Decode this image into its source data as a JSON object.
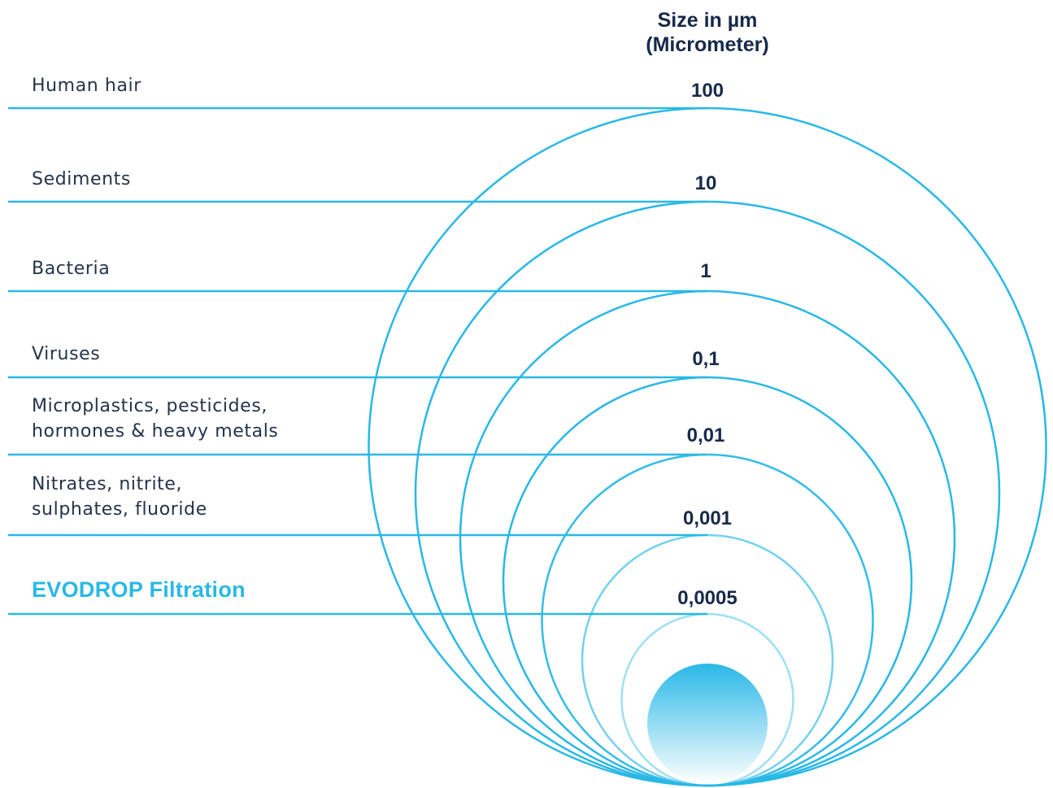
{
  "header": {
    "line1": "Size in µm",
    "line2": "(Micrometer)"
  },
  "rows": [
    {
      "lines": [
        "Human hair"
      ],
      "value": "100",
      "highlight": false
    },
    {
      "lines": [
        "Sediments"
      ],
      "value": "10",
      "highlight": false
    },
    {
      "lines": [
        "Bacteria"
      ],
      "value": "1",
      "highlight": false
    },
    {
      "lines": [
        "Viruses"
      ],
      "value": "0,1",
      "highlight": false
    },
    {
      "lines": [
        "Microplastics, pesticides,",
        "hormones & heavy metals"
      ],
      "value": "0,01",
      "highlight": false
    },
    {
      "lines": [
        "Nitrates, nitrite,",
        "sulphates, fluoride"
      ],
      "value": "0,001",
      "highlight": false
    },
    {
      "lines": [
        "EVODROP Filtration"
      ],
      "value": "0,0005",
      "highlight": true
    }
  ],
  "colors": {
    "line": "#29b8e6",
    "text": "#25334b",
    "value_text": "#17294a",
    "highlight": "#29b8e6",
    "drop_top": "#29b8e6",
    "drop_bottom": "#ffffff"
  }
}
